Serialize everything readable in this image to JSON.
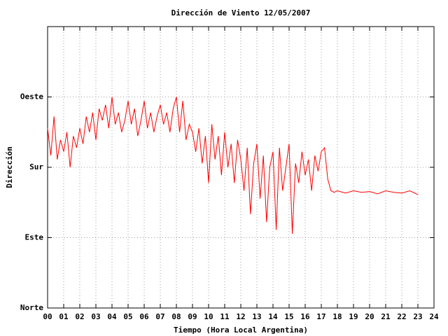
{
  "chart_data": {
    "type": "line",
    "title": "Dirección de Viento 12/05/2007",
    "xlabel": "Tiempo (Hora Local Argentina)",
    "ylabel": "Dirección",
    "color": "#ff0000",
    "grid": true,
    "xlim": [
      0,
      24
    ],
    "ylim": [
      0,
      360
    ],
    "xticks": [
      {
        "value": 0,
        "label": "00"
      },
      {
        "value": 1,
        "label": "01"
      },
      {
        "value": 2,
        "label": "02"
      },
      {
        "value": 3,
        "label": "03"
      },
      {
        "value": 4,
        "label": "04"
      },
      {
        "value": 5,
        "label": "05"
      },
      {
        "value": 6,
        "label": "06"
      },
      {
        "value": 7,
        "label": "07"
      },
      {
        "value": 8,
        "label": "08"
      },
      {
        "value": 9,
        "label": "09"
      },
      10,
      11,
      12,
      13,
      14,
      15,
      16,
      17,
      18,
      19,
      20,
      21,
      22,
      23,
      24
    ],
    "yticks": [
      {
        "value": 0,
        "label": "Norte"
      },
      {
        "value": 90,
        "label": "Este"
      },
      {
        "value": 180,
        "label": "Sur"
      },
      {
        "value": 270,
        "label": "Oeste"
      }
    ],
    "x": [
      0,
      0.2,
      0.4,
      0.6,
      0.8,
      1.0,
      1.2,
      1.4,
      1.6,
      1.8,
      2.0,
      2.2,
      2.4,
      2.6,
      2.8,
      3.0,
      3.2,
      3.4,
      3.6,
      3.8,
      4.0,
      4.2,
      4.4,
      4.6,
      4.8,
      5.0,
      5.2,
      5.4,
      5.6,
      5.8,
      6.0,
      6.2,
      6.4,
      6.6,
      6.8,
      7.0,
      7.2,
      7.4,
      7.6,
      7.8,
      8.0,
      8.2,
      8.4,
      8.6,
      8.8,
      9.0,
      9.2,
      9.4,
      9.6,
      9.8,
      10.0,
      10.2,
      10.4,
      10.6,
      10.8,
      11.0,
      11.2,
      11.4,
      11.6,
      11.8,
      12.0,
      12.2,
      12.4,
      12.6,
      12.8,
      13.0,
      13.2,
      13.4,
      13.6,
      13.8,
      14.0,
      14.2,
      14.4,
      14.6,
      14.8,
      15.0,
      15.2,
      15.4,
      15.6,
      15.8,
      16.0,
      16.2,
      16.4,
      16.6,
      16.8,
      17.0,
      17.2,
      17.4,
      17.6,
      17.8,
      18.0,
      18.5,
      19,
      19.5,
      20,
      20.5,
      21,
      21.5,
      22,
      22.5,
      23
    ],
    "values": [
      230,
      195,
      245,
      190,
      215,
      200,
      225,
      180,
      220,
      205,
      230,
      210,
      245,
      225,
      250,
      215,
      255,
      240,
      260,
      230,
      270,
      235,
      250,
      225,
      240,
      265,
      235,
      255,
      220,
      240,
      265,
      230,
      250,
      225,
      245,
      260,
      235,
      250,
      225,
      255,
      270,
      225,
      265,
      215,
      235,
      225,
      200,
      230,
      185,
      220,
      160,
      235,
      190,
      220,
      170,
      225,
      180,
      210,
      160,
      215,
      190,
      150,
      205,
      120,
      185,
      210,
      140,
      195,
      110,
      180,
      200,
      100,
      205,
      150,
      180,
      210,
      95,
      185,
      160,
      200,
      170,
      190,
      150,
      195,
      175,
      200,
      205,
      165,
      150,
      148,
      150,
      147,
      150,
      148,
      149,
      146,
      150,
      148,
      147,
      150,
      145
    ]
  }
}
